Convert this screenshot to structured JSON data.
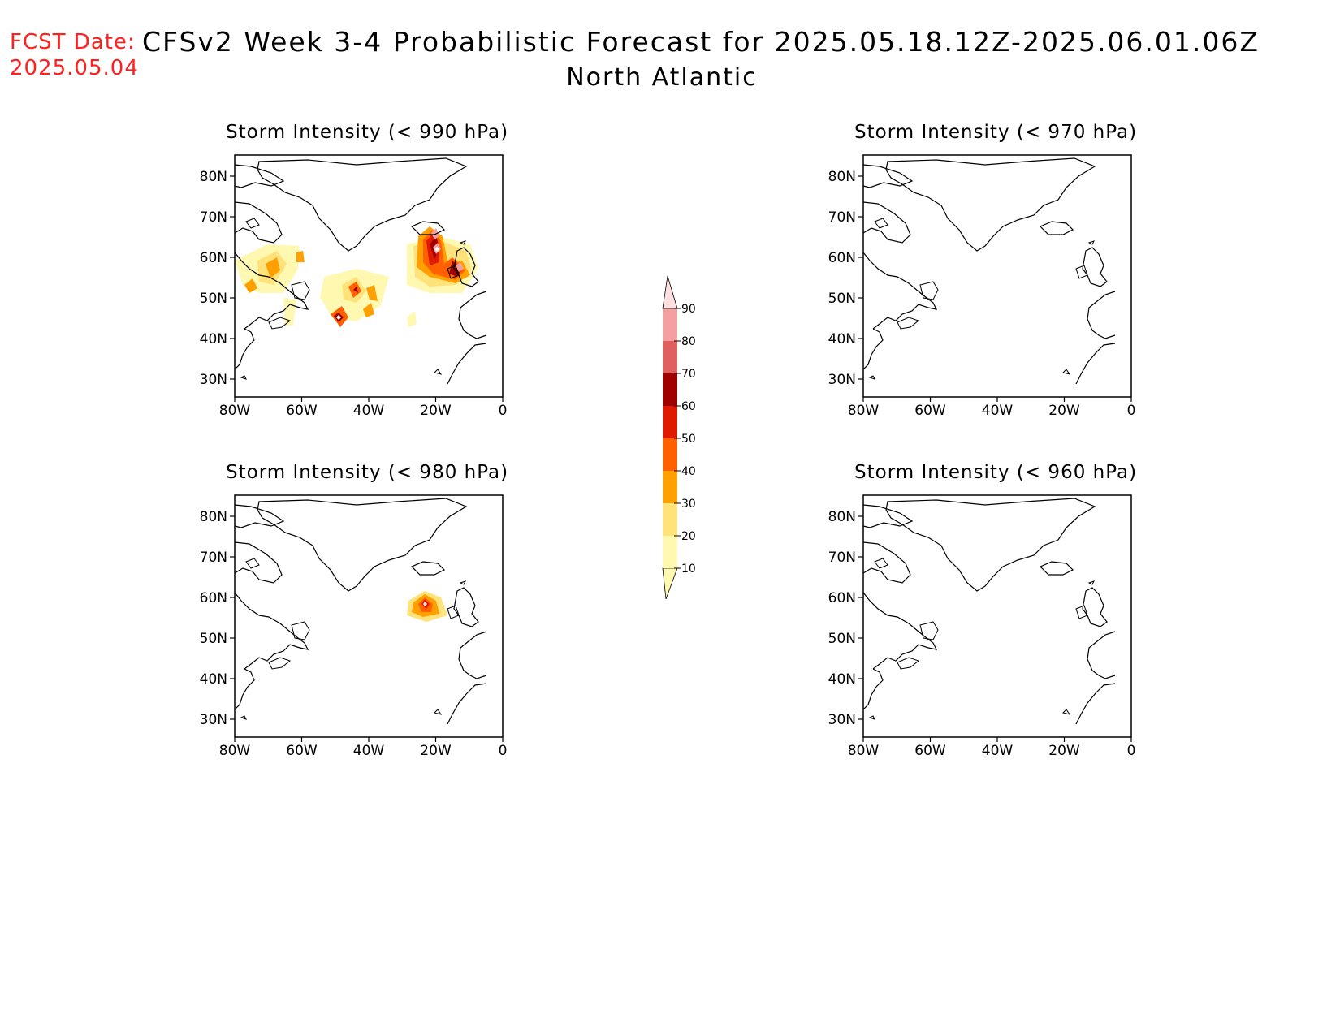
{
  "header": {
    "fcst_date_label": "FCST Date:",
    "fcst_date_value": "2025.05.04",
    "title": "CFSv2 Week 3-4 Probabilistic Forecast for 2025.05.18.12Z-2025.06.01.06Z",
    "region": "North Atlantic"
  },
  "axes": {
    "lat_ticks": [
      "80N",
      "70N",
      "60N",
      "50N",
      "40N",
      "30N"
    ],
    "lon_ticks": [
      "80W",
      "60W",
      "40W",
      "20W",
      "0"
    ]
  },
  "panels": [
    {
      "title": "Storm Intensity (< 990 hPa)",
      "has_data": true
    },
    {
      "title": "Storm Intensity (< 970 hPa)",
      "has_data": false
    },
    {
      "title": "Storm Intensity (< 980 hPa)",
      "has_data": true
    },
    {
      "title": "Storm Intensity (< 960 hPa)",
      "has_data": false
    }
  ],
  "colorbar": {
    "levels": [
      "10",
      "20",
      "30",
      "40",
      "50",
      "60",
      "70",
      "80",
      "90"
    ],
    "colors": [
      "#fff8b0",
      "#ffe27a",
      "#ff9f00",
      "#ff6000",
      "#e01a00",
      "#a00000",
      "#e06060",
      "#f4a0a0",
      "#ffe0e0"
    ]
  },
  "colors": {
    "fcst_text": "#ff2020",
    "land_outline": "#000000"
  }
}
